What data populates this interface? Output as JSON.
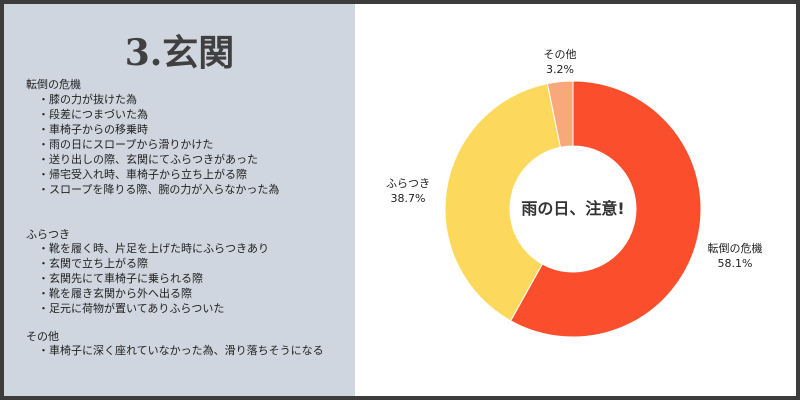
{
  "panel": {
    "title": "3.玄関",
    "sections": [
      {
        "heading": "転倒の危機",
        "items": [
          "膝の力が抜けた為",
          "段差につまづいた為",
          "車椅子からの移乗時",
          "雨の日にスロープから滑りかけた",
          "送り出しの際、玄関にてふらつきがあった",
          "帰宅受入れ時、車椅子から立ち上がる際",
          "スロープを降りる際、腕の力が入らなかった為"
        ]
      },
      {
        "heading": "ふらつき",
        "items": [
          "靴を履く時、片足を上げた時にふらつきあり",
          "玄関で立ち上がる際",
          "玄関先にて車椅子に乗られる際",
          "靴を履き玄関から外へ出る際",
          "足元に荷物が置いてありふらついた"
        ]
      },
      {
        "heading": "その他",
        "items": [
          "車椅子に深く座れていなかった為、滑り落ちそうになる"
        ]
      }
    ]
  },
  "chart_data": {
    "type": "pie",
    "donut": true,
    "center_label": "雨の日、注意!",
    "slices": [
      {
        "label": "転倒の危機",
        "value": 58.1,
        "display": "58.1%",
        "color": "#fa4e2c"
      },
      {
        "label": "ふらつき",
        "value": 38.7,
        "display": "38.7%",
        "color": "#fcd95c"
      },
      {
        "label": "その他",
        "value": 3.2,
        "display": "3.2%",
        "color": "#f9a87c"
      }
    ]
  }
}
